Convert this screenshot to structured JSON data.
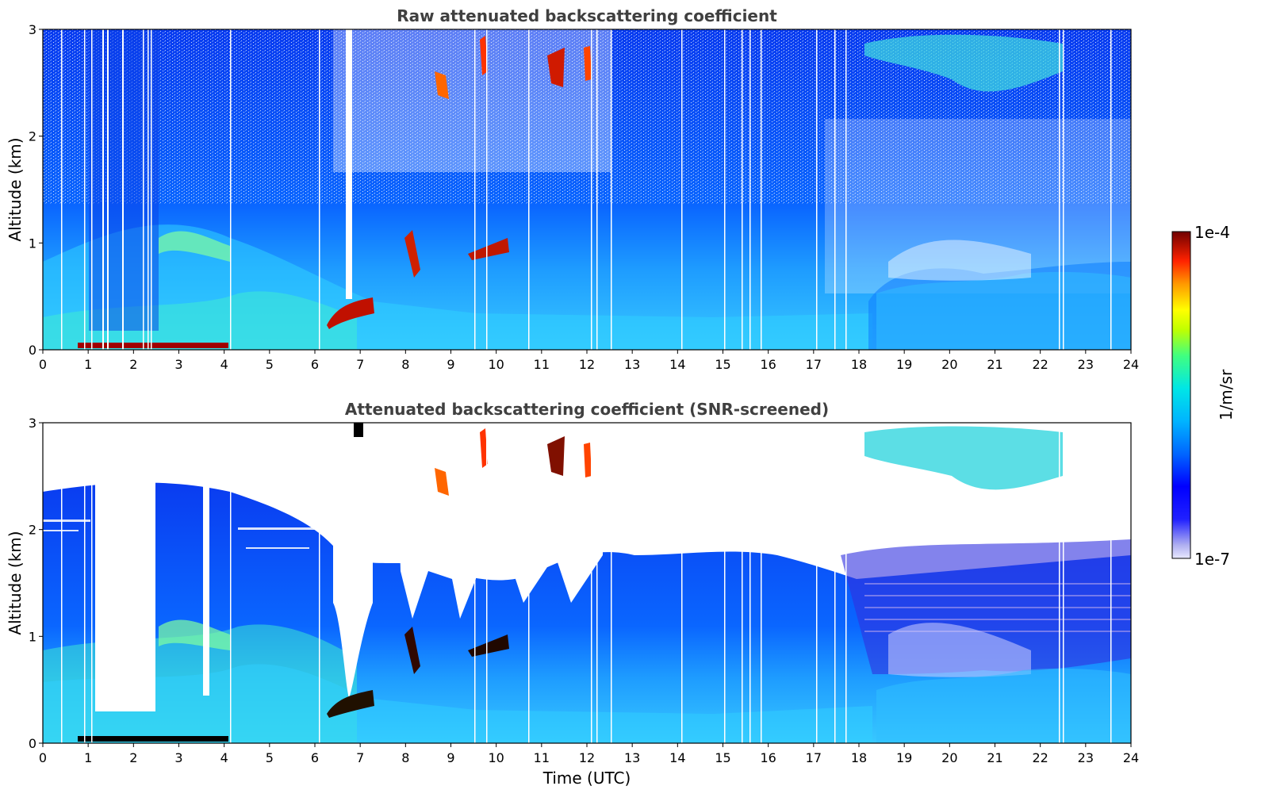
{
  "chart_data": [
    {
      "type": "heatmap",
      "title": "Raw attenuated backscattering coefficient",
      "xlabel": "",
      "ylabel": "Altitude (km)",
      "xlim": [
        0,
        24
      ],
      "ylim": [
        0,
        3
      ],
      "xticks": [
        "0",
        "1",
        "2",
        "3",
        "4",
        "5",
        "6",
        "7",
        "8",
        "9",
        "10",
        "11",
        "12",
        "13",
        "14",
        "15",
        "16",
        "17",
        "18",
        "19",
        "20",
        "21",
        "22",
        "23",
        "24"
      ],
      "yticks": [
        "0",
        "1",
        "2",
        "3"
      ],
      "features": [
        {
          "name": "aerosol boundary layer",
          "x": [
            0,
            24
          ],
          "y": [
            0,
            0.8
          ],
          "level": "medium"
        },
        {
          "name": "surface layer",
          "x": [
            0.8,
            4.1
          ],
          "y": [
            0,
            0.05
          ],
          "level": "max"
        },
        {
          "name": "cloud base",
          "x": [
            6.2,
            7.3
          ],
          "y": [
            0.25,
            0.45
          ],
          "level": "high"
        },
        {
          "name": "clouds",
          "x": [
            7.8,
            12.5
          ],
          "y": [
            0.7,
            2.9
          ],
          "level": "high"
        },
        {
          "name": "elevated layer",
          "x": [
            18.5,
            23.5
          ],
          "y": [
            2.4,
            3.0
          ],
          "level": "medium"
        }
      ]
    },
    {
      "type": "heatmap",
      "title": "Attenuated backscattering coefficient (SNR-screened)",
      "xlabel": "Time (UTC)",
      "ylabel": "Altitude (km)",
      "xlim": [
        0,
        24
      ],
      "ylim": [
        0,
        3
      ],
      "xticks": [
        "0",
        "1",
        "2",
        "3",
        "4",
        "5",
        "6",
        "7",
        "8",
        "9",
        "10",
        "11",
        "12",
        "13",
        "14",
        "15",
        "16",
        "17",
        "18",
        "19",
        "20",
        "21",
        "22",
        "23",
        "24"
      ],
      "yticks": [
        "0",
        "1",
        "2",
        "3"
      ],
      "features": [
        {
          "name": "screened gap",
          "x": [
            1.2,
            2.5
          ],
          "y": [
            0.3,
            3.0
          ],
          "level": "none"
        },
        {
          "name": "screened upper region",
          "x": [
            5.5,
            18.0
          ],
          "y": [
            1.6,
            3.0
          ],
          "level": "none"
        },
        {
          "name": "clouds",
          "x": [
            7.8,
            12.5
          ],
          "y": [
            0.7,
            2.9
          ],
          "level": "high"
        }
      ]
    }
  ],
  "colorbar": {
    "label": "1/m/sr",
    "max_label": "1e-4",
    "min_label": "1e-7",
    "range": [
      1e-07,
      0.0001
    ],
    "scale": "log",
    "colormap": [
      "#e8e8ff",
      "#b0b0f0",
      "#0000ff",
      "#0066ff",
      "#00b4ff",
      "#00e6e6",
      "#40ff80",
      "#c0ff00",
      "#ffff00",
      "#ff9900",
      "#ff2200",
      "#a00000",
      "#700000"
    ]
  }
}
